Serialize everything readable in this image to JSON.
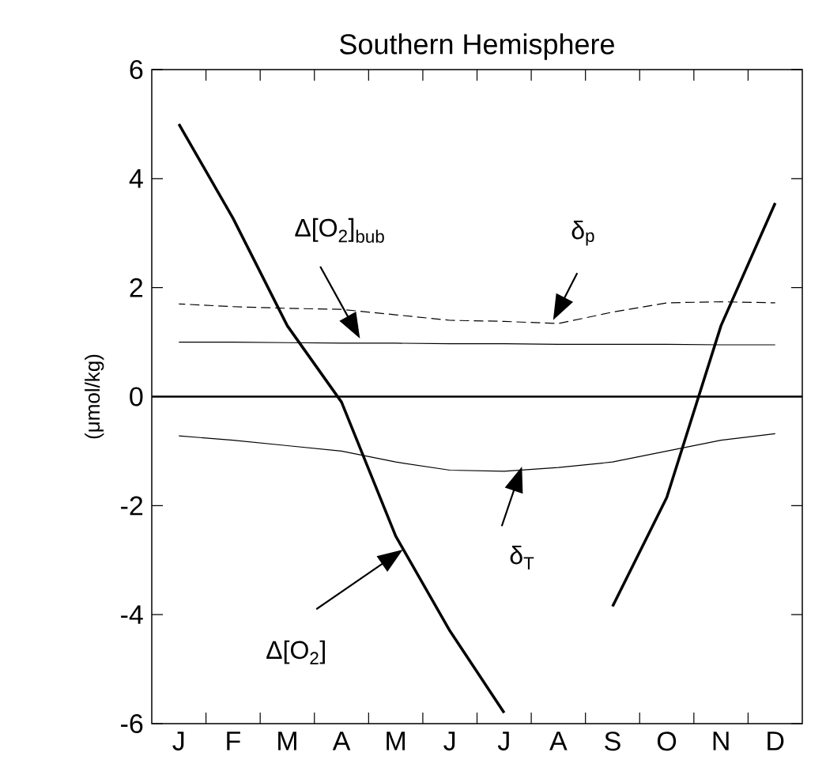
{
  "chart_data": {
    "type": "line",
    "title": "Southern Hemisphere",
    "ylabel": "(μmol/kg)",
    "categories": [
      "J",
      "F",
      "M",
      "A",
      "M",
      "J",
      "J",
      "A",
      "S",
      "O",
      "N",
      "D"
    ],
    "ylim": [
      -6,
      6
    ],
    "yticks": [
      6,
      4,
      2,
      0,
      -2,
      -4,
      -6
    ],
    "series": [
      {
        "color": "#000000",
        "line_style": "solid",
        "values": [
          5.0,
          3.27,
          1.3,
          -0.1,
          -2.56,
          -4.3,
          -5.8,
          null,
          -3.85,
          -1.85,
          1.3,
          3.55
        ]
      },
      {
        "color": "#000000",
        "line_style": "dashed",
        "values": [
          1.7,
          1.65,
          1.62,
          1.6,
          1.5,
          1.4,
          1.38,
          1.34,
          1.55,
          1.72,
          1.74,
          1.72
        ]
      },
      {
        "color": "#000000",
        "line_style": "solid",
        "values": [
          1.0,
          1.0,
          0.99,
          0.98,
          0.98,
          0.97,
          0.97,
          0.96,
          0.96,
          0.96,
          0.95,
          0.95
        ]
      },
      {
        "color": "#000000",
        "line_style": "solid",
        "values": [
          -0.72,
          -0.8,
          -0.9,
          -1.0,
          -1.2,
          -1.35,
          -1.37,
          -1.3,
          -1.2,
          -1.0,
          -0.8,
          -0.68
        ]
      }
    ],
    "ref_lines": [
      {
        "axis": "y",
        "value": 0,
        "color": "#000000"
      }
    ],
    "annotations": [
      "Δ[O$_{2}$]$_{bub}$",
      "δ$_{p}$",
      "δ$_{T}$",
      "Δ[O$_{2}$]"
    ],
    "grid": false,
    "marker": "none"
  }
}
